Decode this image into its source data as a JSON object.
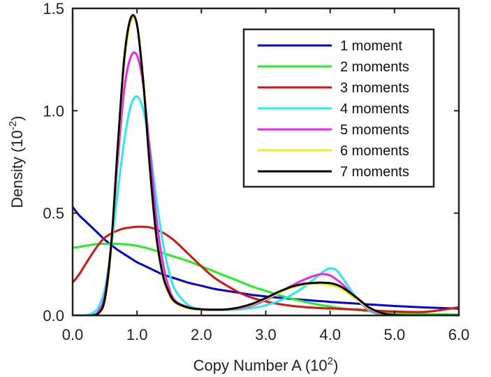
{
  "chart_data": {
    "type": "line",
    "xlabel": "Copy Number A (10",
    "xlabel_sup": "2",
    "xlabel_suffix": ")",
    "ylabel": "Density (10",
    "ylabel_sup": "-2",
    "ylabel_suffix": ")",
    "xlim": [
      0,
      6
    ],
    "ylim": [
      0,
      1.5
    ],
    "xticks": [
      0,
      1,
      2,
      3,
      4,
      5,
      6
    ],
    "xtick_labels": [
      "0.0",
      "1.0",
      "2.0",
      "3.0",
      "4.0",
      "5.0",
      "6.0"
    ],
    "yticks": [
      0,
      0.5,
      1.0,
      1.5
    ],
    "ytick_labels": [
      "0.0",
      "0.5",
      "1.0",
      "1.5"
    ],
    "grid": false,
    "legend_position": "top-right",
    "x": [
      0.0,
      0.1,
      0.2,
      0.3,
      0.4,
      0.5,
      0.6,
      0.7,
      0.8,
      0.9,
      1.0,
      1.1,
      1.2,
      1.3,
      1.4,
      1.5,
      1.6,
      1.8,
      2.0,
      2.2,
      2.4,
      2.6,
      2.8,
      3.0,
      3.2,
      3.4,
      3.6,
      3.8,
      3.9,
      4.0,
      4.1,
      4.2,
      4.4,
      4.6,
      4.8,
      5.0,
      5.5,
      6.0
    ],
    "series": [
      {
        "name": "1 moment",
        "color": "#0000dd",
        "values": [
          0.53,
          0.49,
          0.46,
          0.43,
          0.4,
          0.37,
          0.345,
          0.32,
          0.3,
          0.28,
          0.26,
          0.245,
          0.23,
          0.215,
          0.2,
          0.19,
          0.18,
          0.16,
          0.145,
          0.13,
          0.12,
          0.11,
          0.1,
          0.093,
          0.087,
          0.081,
          0.076,
          0.071,
          0.069,
          0.066,
          0.064,
          0.062,
          0.058,
          0.054,
          0.05,
          0.046,
          0.039,
          0.033
        ]
      },
      {
        "name": "2 moments",
        "color": "#22ee22",
        "values": [
          0.33,
          0.335,
          0.34,
          0.345,
          0.35,
          0.35,
          0.35,
          0.35,
          0.348,
          0.345,
          0.34,
          0.333,
          0.325,
          0.315,
          0.305,
          0.295,
          0.285,
          0.265,
          0.24,
          0.215,
          0.19,
          0.165,
          0.14,
          0.12,
          0.1,
          0.082,
          0.067,
          0.054,
          0.048,
          0.043,
          0.038,
          0.034,
          0.027,
          0.021,
          0.017,
          0.013,
          0.007,
          0.004
        ]
      },
      {
        "name": "3 moments",
        "color": "#dd1111",
        "values": [
          0.16,
          0.2,
          0.25,
          0.3,
          0.345,
          0.38,
          0.4,
          0.415,
          0.425,
          0.43,
          0.433,
          0.433,
          0.43,
          0.42,
          0.405,
          0.385,
          0.36,
          0.3,
          0.24,
          0.185,
          0.145,
          0.11,
          0.085,
          0.068,
          0.056,
          0.047,
          0.041,
          0.037,
          0.035,
          0.034,
          0.033,
          0.031,
          0.029,
          0.025,
          0.022,
          0.019,
          0.018,
          0.04
        ]
      },
      {
        "name": "4 moments",
        "color": "#22eeee",
        "values": [
          0.0,
          0.0,
          0.0,
          0.01,
          0.04,
          0.13,
          0.33,
          0.6,
          0.85,
          1.02,
          1.07,
          1.0,
          0.82,
          0.57,
          0.36,
          0.21,
          0.12,
          0.05,
          0.03,
          0.027,
          0.027,
          0.03,
          0.037,
          0.05,
          0.07,
          0.1,
          0.14,
          0.19,
          0.215,
          0.23,
          0.22,
          0.18,
          0.09,
          0.025,
          0.004,
          0.0,
          0.0,
          0.0
        ]
      },
      {
        "name": "5 moments",
        "color": "#ee22ee",
        "values": [
          0.0,
          0.0,
          0.0,
          0.0,
          0.02,
          0.1,
          0.35,
          0.75,
          1.1,
          1.26,
          1.27,
          1.12,
          0.8,
          0.48,
          0.26,
          0.13,
          0.07,
          0.04,
          0.03,
          0.028,
          0.03,
          0.035,
          0.05,
          0.075,
          0.11,
          0.145,
          0.175,
          0.198,
          0.202,
          0.195,
          0.175,
          0.15,
          0.085,
          0.03,
          0.007,
          0.001,
          0.0,
          0.0
        ]
      },
      {
        "name": "6 moments",
        "color": "#eeee22",
        "values": [
          0.0,
          0.0,
          0.0,
          0.0,
          0.01,
          0.07,
          0.33,
          0.8,
          1.22,
          1.43,
          1.42,
          1.15,
          0.72,
          0.38,
          0.19,
          0.1,
          0.06,
          0.035,
          0.028,
          0.027,
          0.03,
          0.038,
          0.055,
          0.08,
          0.11,
          0.135,
          0.15,
          0.155,
          0.153,
          0.148,
          0.14,
          0.125,
          0.08,
          0.035,
          0.01,
          0.002,
          0.0,
          0.0
        ]
      },
      {
        "name": "7 moments",
        "color": "#000000",
        "values": [
          0.0,
          0.0,
          0.0,
          0.0,
          0.01,
          0.08,
          0.35,
          0.82,
          1.25,
          1.45,
          1.42,
          1.13,
          0.72,
          0.39,
          0.2,
          0.11,
          0.065,
          0.038,
          0.03,
          0.028,
          0.03,
          0.04,
          0.058,
          0.085,
          0.115,
          0.14,
          0.155,
          0.16,
          0.16,
          0.158,
          0.15,
          0.135,
          0.09,
          0.04,
          0.012,
          0.002,
          0.0,
          0.0
        ]
      }
    ]
  }
}
